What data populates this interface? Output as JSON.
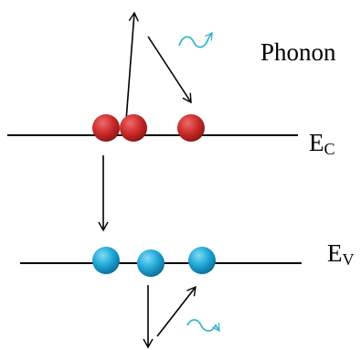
{
  "labels": {
    "phonon": "Phonon",
    "conduction_band": {
      "main": "E",
      "sub": "C"
    },
    "valence_band": {
      "main": "E",
      "sub": "V"
    }
  },
  "colors": {
    "electron": "#c62828",
    "electron_highlight": "#ef6b6b",
    "hole": "#1e9fcf",
    "hole_highlight": "#6fd4f2",
    "phonon_wave": "#3ab5c8",
    "line": "#000000"
  },
  "icons": {
    "phonon_wave": "wavy-arrow-icon"
  }
}
